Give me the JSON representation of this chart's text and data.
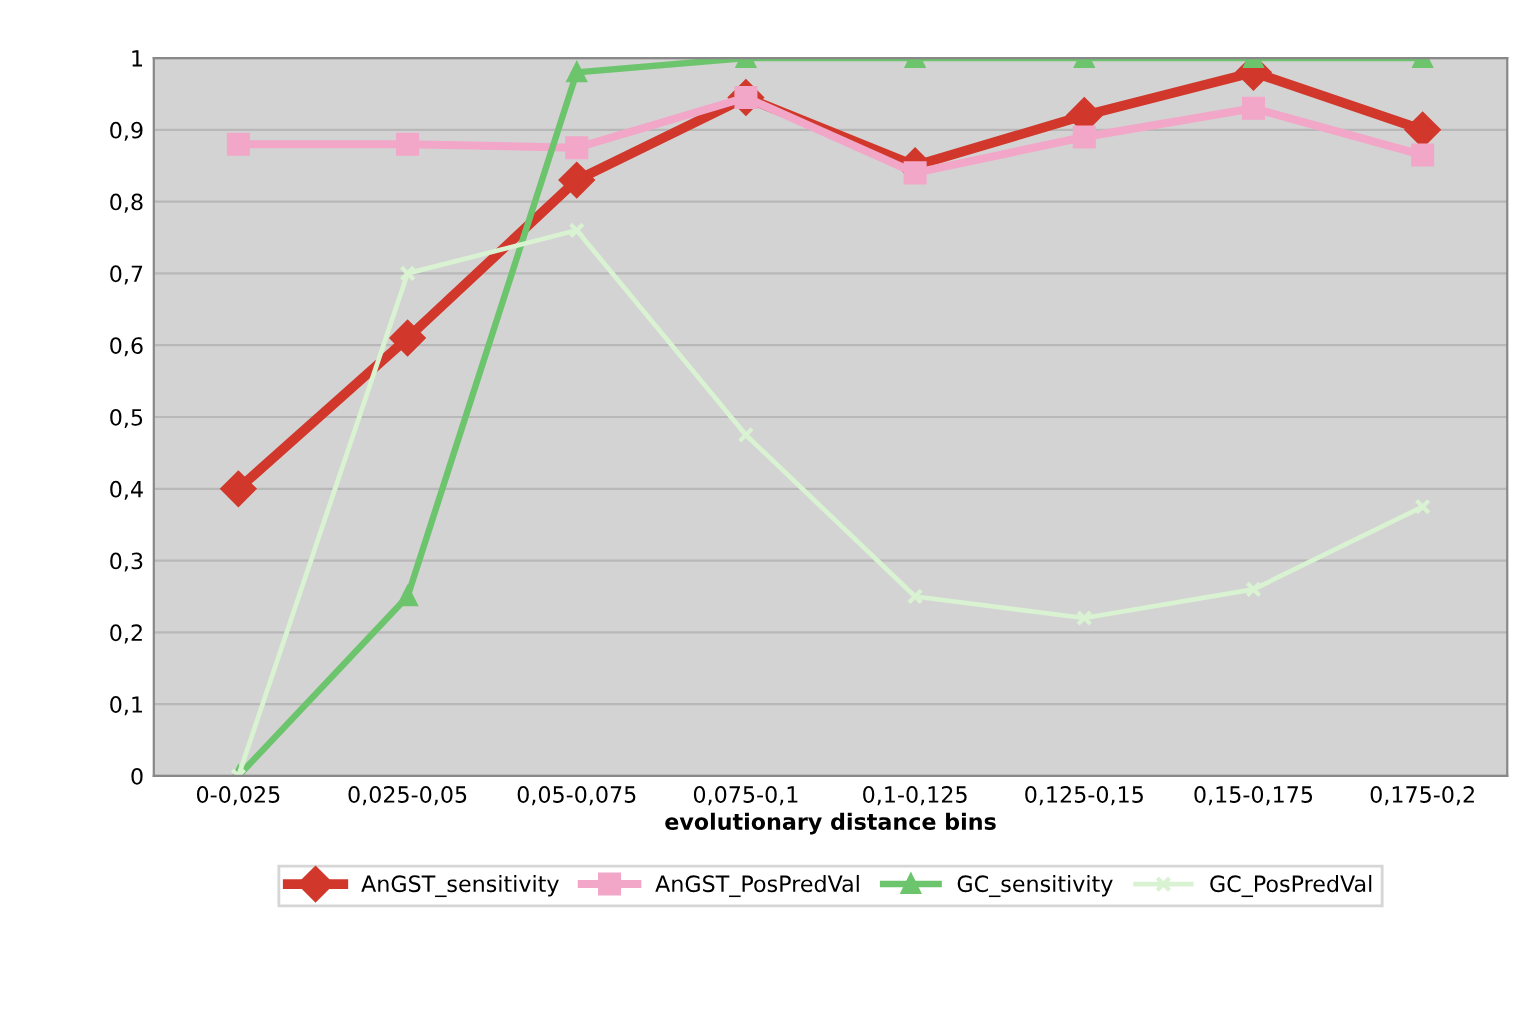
{
  "chart_data": {
    "type": "line",
    "xlabel": "evolutionary distance bins",
    "categories": [
      "0-0,025",
      "0,025-0,05",
      "0,05-0,075",
      "0,075-0,1",
      "0,1-0,125",
      "0,125-0,15",
      "0,15-0,175",
      "0,175-0,2"
    ],
    "series": [
      {
        "name": "AnGST_sensitivity",
        "color": "#d2372b",
        "marker": "diamond",
        "values": [
          0.4,
          0.61,
          0.83,
          0.945,
          0.85,
          0.92,
          0.98,
          0.9
        ]
      },
      {
        "name": "AnGST_PosPredVal",
        "color": "#f2a7c8",
        "marker": "square",
        "values": [
          0.88,
          0.88,
          0.875,
          0.945,
          0.84,
          0.89,
          0.93,
          0.865
        ]
      },
      {
        "name": "GC_sensitivity",
        "color": "#6cc46c",
        "marker": "triangle",
        "values": [
          0,
          0.25,
          0.98,
          1,
          1,
          1,
          1,
          1
        ]
      },
      {
        "name": "GC_PosPredVal",
        "color": "#d8f2d2",
        "marker": "cross",
        "values": [
          0,
          0.7,
          0.76,
          0.475,
          0.25,
          0.22,
          0.26,
          0.375
        ]
      }
    ],
    "ylim": [
      0,
      1
    ],
    "yticks": [
      0,
      {
        "value": 0.1,
        "label": "0,1"
      },
      {
        "value": 0.2,
        "label": "0,2"
      },
      {
        "value": 0.3,
        "label": "0,3"
      },
      {
        "value": 0.4,
        "label": "0,4"
      },
      {
        "value": 0.5,
        "label": "0,5"
      },
      {
        "value": 0.6,
        "label": "0,6"
      },
      {
        "value": 0.7,
        "label": "0,7"
      },
      {
        "value": 0.8,
        "label": "0,8"
      },
      {
        "value": 0.9,
        "label": "0,9"
      },
      1
    ],
    "grid": "y",
    "legend": "bottom",
    "line_style": "solid"
  }
}
